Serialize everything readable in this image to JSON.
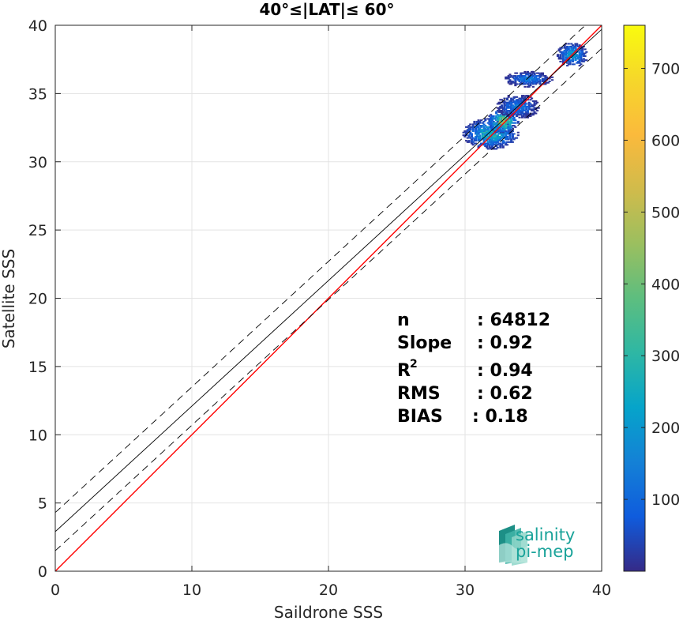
{
  "chart_data": {
    "type": "heatmap",
    "title": "40°≤|LAT|≤ 60°",
    "xlabel": "Saildrone SSS",
    "ylabel": "Satellite SSS",
    "xlim": [
      0,
      40
    ],
    "ylim": [
      0,
      40
    ],
    "xticks": [
      0,
      10,
      20,
      30,
      40
    ],
    "yticks": [
      0,
      5,
      10,
      15,
      20,
      25,
      30,
      35,
      40
    ],
    "grid": true,
    "colorbar": {
      "min": 0,
      "max": 760,
      "ticks": [
        100,
        200,
        300,
        400,
        500,
        600,
        700
      ]
    },
    "lines": [
      {
        "name": "identity",
        "color": "#ff0000",
        "style": "solid",
        "x": [
          0,
          40
        ],
        "y": [
          0,
          40
        ]
      },
      {
        "name": "regression",
        "color": "#000000",
        "style": "solid",
        "x": [
          0,
          40
        ],
        "y": [
          2.9,
          39.7
        ]
      },
      {
        "name": "upper-bound",
        "color": "#000000",
        "style": "dashed",
        "x": [
          0,
          40
        ],
        "y": [
          4.3,
          41.1
        ]
      },
      {
        "name": "lower-bound",
        "color": "#000000",
        "style": "dashed",
        "x": [
          0,
          40
        ],
        "y": [
          1.5,
          38.3
        ]
      }
    ],
    "clusters": [
      {
        "cx": 31.8,
        "cy": 32.0,
        "sx": 0.9,
        "sy": 0.5,
        "peak": 260
      },
      {
        "cx": 32.7,
        "cy": 32.9,
        "sx": 0.5,
        "sy": 0.4,
        "peak": 420
      },
      {
        "cx": 33.8,
        "cy": 34.0,
        "sx": 0.7,
        "sy": 0.4,
        "peak": 120
      },
      {
        "cx": 34.6,
        "cy": 36.0,
        "sx": 0.8,
        "sy": 0.25,
        "peak": 130
      },
      {
        "cx": 37.8,
        "cy": 37.8,
        "sx": 0.5,
        "sy": 0.4,
        "peak": 200
      }
    ],
    "stats": [
      {
        "label": "n",
        "value": ": 64812"
      },
      {
        "label": "Slope",
        "value": ": 0.92"
      },
      {
        "label": "R",
        "sup": "2",
        "value": ": 0.94"
      },
      {
        "label": "RMS",
        "value": ": 0.62"
      },
      {
        "label": "BIAS",
        "value": ": 0.18"
      }
    ]
  },
  "logo": {
    "line1": "salinity",
    "line2": "pi-mep"
  }
}
